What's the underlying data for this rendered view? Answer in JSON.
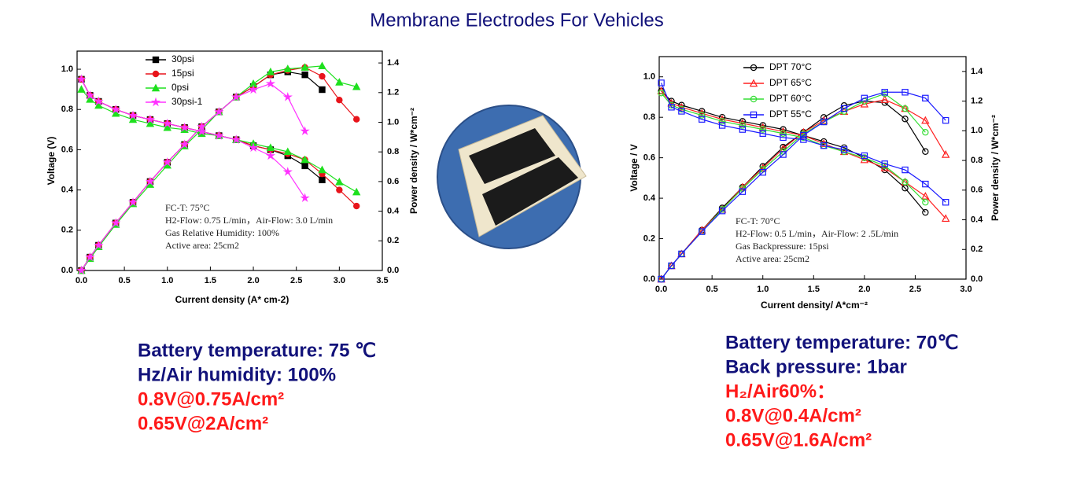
{
  "title": "Membrane Electrodes For Vehicles",
  "left_notes": [
    "Battery temperature: 75 ℃",
    "Hz/Air humidity: 100%",
    "0.8V@0.75A/cm²",
    "0.65V@2A/cm²"
  ],
  "right_notes": [
    "Battery temperature: 70℃",
    "Back pressure: 1bar",
    "H₂/Air60%：",
    "0.8V@0.4A/cm²",
    "0.65V@1.6A/cm²"
  ],
  "chart_data": [
    {
      "type": "line",
      "xlabel": "Current density (A* cm-2)",
      "ylabel": "Voltage (V)",
      "y2label": "Power density / W*cm⁻²",
      "marker_fill": true,
      "xlim": [
        -0.05,
        3.5
      ],
      "xticks": [
        {
          "value": 0,
          "label": "0.0"
        },
        0.5,
        {
          "value": 1,
          "label": "1.0"
        },
        1.5,
        {
          "value": 2,
          "label": "2.0"
        },
        2.5,
        {
          "value": 3,
          "label": "3.0"
        },
        3.5
      ],
      "ylim": [
        0,
        1.09
      ],
      "yticks": [
        {
          "value": 0,
          "label": "0.0"
        },
        0.2,
        0.4,
        0.6,
        0.8,
        {
          "value": 1,
          "label": "1.0"
        }
      ],
      "y2lim": [
        0,
        1.48
      ],
      "y2ticks": [
        {
          "value": 0,
          "label": "0.0"
        },
        0.2,
        0.4,
        0.6,
        0.8,
        {
          "value": 1,
          "label": "1.0"
        },
        1.2,
        1.4
      ],
      "annotations": [
        "FC-T: 75°C",
        "H2-Flow: 0.75 L/min，Air-Flow: 3.0 L/min",
        "Gas Relative Humidity: 100%",
        "Active area: 25cm2"
      ],
      "series": [
        {
          "name": "30psi",
          "color": "#000000",
          "marker": "square",
          "x": [
            0,
            0.1,
            0.2,
            0.4,
            0.6,
            0.8,
            1.0,
            1.2,
            1.4,
            1.6,
            1.8,
            2.0,
            2.2,
            2.4,
            2.6,
            2.8
          ],
          "values": [
            0.95,
            0.87,
            0.84,
            0.8,
            0.77,
            0.75,
            0.73,
            0.71,
            0.69,
            0.67,
            0.65,
            0.62,
            0.6,
            0.57,
            0.52,
            0.45
          ],
          "power": [
            0,
            0.09,
            0.17,
            0.32,
            0.46,
            0.6,
            0.73,
            0.85,
            0.97,
            1.07,
            1.17,
            1.24,
            1.32,
            1.34,
            1.32,
            1.22
          ]
        },
        {
          "name": "15psi",
          "color": "#e8141b",
          "marker": "circle",
          "x": [
            0,
            0.1,
            0.2,
            0.4,
            0.6,
            0.8,
            1.0,
            1.2,
            1.4,
            1.6,
            1.8,
            2.0,
            2.2,
            2.4,
            2.6,
            2.8,
            3.0,
            3.2
          ],
          "values": [
            0.95,
            0.87,
            0.84,
            0.8,
            0.77,
            0.75,
            0.73,
            0.71,
            0.69,
            0.67,
            0.65,
            0.62,
            0.6,
            0.58,
            0.55,
            0.48,
            0.4,
            0.32
          ],
          "power": [
            0,
            0.09,
            0.17,
            0.32,
            0.46,
            0.6,
            0.73,
            0.85,
            0.97,
            1.07,
            1.17,
            1.24,
            1.32,
            1.35,
            1.37,
            1.31,
            1.15,
            1.02
          ]
        },
        {
          "name": "0psi",
          "color": "#1ee01e",
          "marker": "triangle",
          "x": [
            0,
            0.1,
            0.2,
            0.4,
            0.6,
            0.8,
            1.0,
            1.2,
            1.4,
            1.6,
            1.8,
            2.0,
            2.2,
            2.4,
            2.6,
            2.8,
            3.0,
            3.2
          ],
          "values": [
            0.9,
            0.85,
            0.82,
            0.78,
            0.75,
            0.73,
            0.71,
            0.7,
            0.68,
            0.67,
            0.65,
            0.63,
            0.61,
            0.59,
            0.55,
            0.5,
            0.44,
            0.39
          ],
          "power": [
            0,
            0.08,
            0.16,
            0.31,
            0.45,
            0.58,
            0.71,
            0.84,
            0.95,
            1.07,
            1.17,
            1.26,
            1.34,
            1.36,
            1.37,
            1.38,
            1.27,
            1.24
          ]
        },
        {
          "name": "30psi-1",
          "color": "#ff33ff",
          "marker": "star",
          "x": [
            0,
            0.1,
            0.2,
            0.4,
            0.6,
            0.8,
            1.0,
            1.2,
            1.4,
            1.6,
            1.8,
            2.0,
            2.2,
            2.4,
            2.6
          ],
          "values": [
            0.95,
            0.87,
            0.84,
            0.8,
            0.77,
            0.75,
            0.73,
            0.71,
            0.69,
            0.67,
            0.65,
            0.61,
            0.57,
            0.49,
            0.36
          ],
          "power": [
            0,
            0.09,
            0.17,
            0.32,
            0.46,
            0.6,
            0.73,
            0.85,
            0.97,
            1.07,
            1.17,
            1.22,
            1.26,
            1.17,
            0.94
          ]
        }
      ]
    },
    {
      "type": "line",
      "xlabel": "Current density/ A*cm⁻²",
      "ylabel": "Voltage / V",
      "y2label": "Power density / W*cm⁻²",
      "marker_fill": false,
      "xlim": [
        -0.02,
        3.0
      ],
      "xticks": [
        {
          "value": 0,
          "label": "0.0"
        },
        0.5,
        {
          "value": 1,
          "label": "1.0"
        },
        1.5,
        {
          "value": 2,
          "label": "2.0"
        },
        2.5,
        {
          "value": 3,
          "label": "3.0"
        }
      ],
      "ylim": [
        0,
        1.1
      ],
      "yticks": [
        {
          "value": 0,
          "label": "0.0"
        },
        0.2,
        0.4,
        0.6,
        0.8,
        {
          "value": 1,
          "label": "1.0"
        }
      ],
      "y2lim": [
        0,
        1.5
      ],
      "y2ticks": [
        {
          "value": 0,
          "label": "0.0"
        },
        0.2,
        0.4,
        0.6,
        0.8,
        {
          "value": 1,
          "label": "1.0"
        },
        1.2,
        1.4
      ],
      "annotations": [
        "FC-T: 70°C",
        "H2-Flow: 0.5 L/min，Air-Flow: 2 .5L/min",
        "Gas Backpressure: 15psi",
        "Active area: 25cm2"
      ],
      "series": [
        {
          "name": "DPT 70°C",
          "color": "#000000",
          "marker": "circle",
          "x": [
            0,
            0.1,
            0.2,
            0.4,
            0.6,
            0.8,
            1.0,
            1.2,
            1.4,
            1.6,
            1.8,
            2.0,
            2.2,
            2.4,
            2.6
          ],
          "values": [
            0.93,
            0.88,
            0.86,
            0.83,
            0.8,
            0.78,
            0.76,
            0.74,
            0.71,
            0.68,
            0.65,
            0.6,
            0.54,
            0.45,
            0.33
          ],
          "power": [
            0,
            0.09,
            0.17,
            0.33,
            0.48,
            0.62,
            0.76,
            0.89,
            0.99,
            1.09,
            1.17,
            1.2,
            1.19,
            1.08,
            0.86
          ]
        },
        {
          "name": "DPT 65°C",
          "color": "#ff2020",
          "marker": "triangle",
          "x": [
            0,
            0.1,
            0.2,
            0.4,
            0.6,
            0.8,
            1.0,
            1.2,
            1.4,
            1.6,
            1.8,
            2.0,
            2.2,
            2.4,
            2.6,
            2.8
          ],
          "values": [
            0.93,
            0.87,
            0.85,
            0.82,
            0.79,
            0.77,
            0.75,
            0.73,
            0.71,
            0.67,
            0.63,
            0.59,
            0.55,
            0.48,
            0.41,
            0.3
          ],
          "power": [
            0,
            0.09,
            0.17,
            0.33,
            0.47,
            0.62,
            0.75,
            0.88,
            0.99,
            1.07,
            1.13,
            1.18,
            1.21,
            1.15,
            1.07,
            0.84
          ]
        },
        {
          "name": "DPT 60°C",
          "color": "#33dd33",
          "marker": "circle",
          "x": [
            0,
            0.1,
            0.2,
            0.4,
            0.6,
            0.8,
            1.0,
            1.2,
            1.4,
            1.6,
            1.8,
            2.0,
            2.2,
            2.4,
            2.6
          ],
          "values": [
            0.92,
            0.86,
            0.84,
            0.81,
            0.78,
            0.76,
            0.74,
            0.72,
            0.7,
            0.66,
            0.63,
            0.6,
            0.56,
            0.48,
            0.38
          ],
          "power": [
            0,
            0.09,
            0.17,
            0.32,
            0.47,
            0.61,
            0.74,
            0.86,
            0.98,
            1.06,
            1.13,
            1.2,
            1.25,
            1.15,
            0.99
          ]
        },
        {
          "name": "DPT 55°C",
          "color": "#1a1aff",
          "marker": "square",
          "x": [
            0,
            0.1,
            0.2,
            0.4,
            0.6,
            0.8,
            1.0,
            1.2,
            1.4,
            1.6,
            1.8,
            2.0,
            2.2,
            2.4,
            2.6,
            2.8
          ],
          "values": [
            0.97,
            0.85,
            0.83,
            0.79,
            0.76,
            0.74,
            0.72,
            0.7,
            0.69,
            0.66,
            0.64,
            0.61,
            0.57,
            0.54,
            0.47,
            0.38
          ],
          "power": [
            0,
            0.09,
            0.17,
            0.32,
            0.46,
            0.59,
            0.72,
            0.84,
            0.97,
            1.06,
            1.15,
            1.22,
            1.26,
            1.26,
            1.22,
            1.07
          ]
        }
      ]
    }
  ]
}
